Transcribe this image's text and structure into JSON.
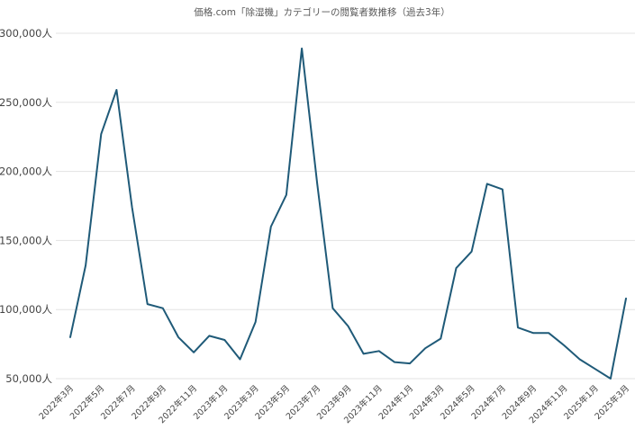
{
  "chart_data": {
    "type": "line",
    "title": "価格.com「除湿機」カテゴリーの閲覧者数推移（過去3年）",
    "xlabel": "",
    "ylabel": "",
    "ylim": [
      50000,
      300000
    ],
    "yticks": [
      50000,
      100000,
      150000,
      200000,
      250000,
      300000
    ],
    "ytick_labels": [
      "50,000人",
      "100,000人",
      "150,000人",
      "200,000人",
      "250,000人",
      "300,000人"
    ],
    "grid": true,
    "legend": "none",
    "line_color": "#1f5a78",
    "x": [
      "2022年3月",
      "2022年4月",
      "2022年5月",
      "2022年6月",
      "2022年7月",
      "2022年8月",
      "2022年9月",
      "2022年10月",
      "2022年11月",
      "2022年12月",
      "2023年1月",
      "2023年2月",
      "2023年3月",
      "2023年4月",
      "2023年5月",
      "2023年6月",
      "2023年7月",
      "2023年8月",
      "2023年9月",
      "2023年10月",
      "2023年11月",
      "2023年12月",
      "2024年1月",
      "2024年2月",
      "2024年3月",
      "2024年4月",
      "2024年5月",
      "2024年6月",
      "2024年7月",
      "2024年8月",
      "2024年9月",
      "2024年10月",
      "2024年11月",
      "2024年12月",
      "2025年1月",
      "2025年2月",
      "2025年3月"
    ],
    "x_tick_labels": [
      "2022年3月",
      "2022年5月",
      "2022年7月",
      "2022年9月",
      "2022年11月",
      "2023年1月",
      "2023年3月",
      "2023年5月",
      "2023年7月",
      "2023年9月",
      "2023年11月",
      "2024年1月",
      "2024年3月",
      "2024年5月",
      "2024年7月",
      "2024年9月",
      "2024年11月",
      "2025年1月",
      "2025年3月"
    ],
    "series": [
      {
        "values": [
          80000,
          132000,
          227000,
          259000,
          174000,
          104000,
          101000,
          80000,
          69000,
          81000,
          78000,
          64000,
          91000,
          160000,
          183000,
          289000,
          191000,
          101000,
          88000,
          68000,
          70000,
          62000,
          61000,
          72000,
          79000,
          130000,
          142000,
          191000,
          187000,
          87000,
          83000,
          83000,
          74000,
          64000,
          57000,
          50000,
          108000
        ]
      }
    ]
  }
}
